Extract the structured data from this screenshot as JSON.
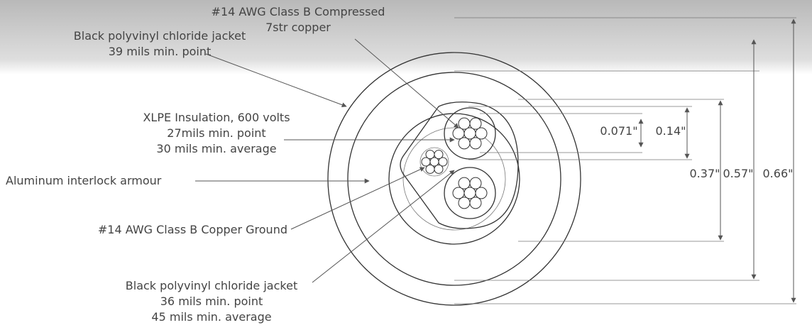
{
  "labels": [
    {
      "lines": [
        "#14 AWG Class B Compressed",
        "7str copper"
      ]
    },
    {
      "lines": [
        "Black polyvinyl chloride jacket",
        "39 mils min. point"
      ]
    },
    {
      "lines": [
        "XLPE Insulation, 600 volts",
        "27mils min. point",
        "30 mils min. average"
      ]
    },
    {
      "lines": [
        "Aluminum interlock armour"
      ]
    },
    {
      "lines": [
        "#14 AWG Class B Copper Ground"
      ]
    },
    {
      "lines": [
        "Black polyvinyl chloride jacket",
        "36 mils min. point",
        "45 mils min. average"
      ]
    }
  ],
  "dimensions": [
    "0.071\"",
    "0.14\"",
    "0.37\"",
    "0.57\"",
    "0.66\""
  ]
}
